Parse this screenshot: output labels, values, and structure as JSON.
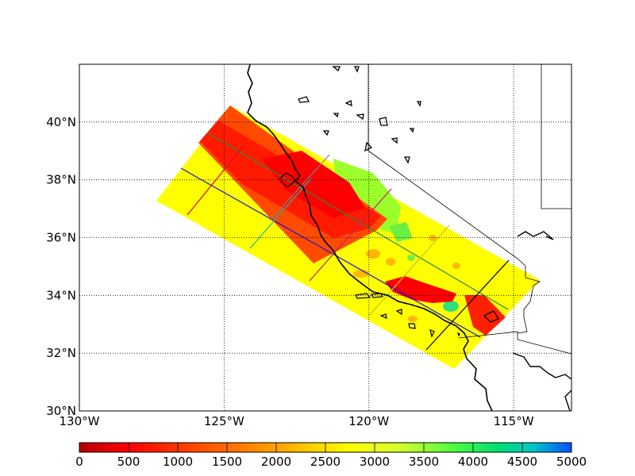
{
  "map": {
    "lon_range": [
      -130,
      -113
    ],
    "lat_range": [
      30,
      42
    ],
    "lat_labels": [
      "30°N",
      "32°N",
      "34°N",
      "36°N",
      "38°N",
      "40°N"
    ],
    "lat_values": [
      30,
      32,
      34,
      36,
      38,
      40
    ],
    "lon_labels": [
      "130°W",
      "125°W",
      "120°W",
      "115°W"
    ],
    "lon_values": [
      -130,
      -125,
      -120,
      -115
    ],
    "grid": "dotted"
  },
  "colorbar": {
    "min": 0,
    "max": 5000,
    "ticks": [
      "0",
      "500",
      "1000",
      "1500",
      "2000",
      "2500",
      "3000",
      "3500",
      "4000",
      "4500",
      "5000"
    ],
    "colormap": [
      "#b30000",
      "#ff0000",
      "#ff6a00",
      "#ffb000",
      "#ffff00",
      "#c8ff2a",
      "#58ff3c",
      "#00e070",
      "#00c8d0",
      "#0060ff"
    ]
  },
  "colors": {
    "low": "#ff0000",
    "mid": "#ffff00",
    "high": "#7cff3a",
    "coast": "#000000"
  }
}
